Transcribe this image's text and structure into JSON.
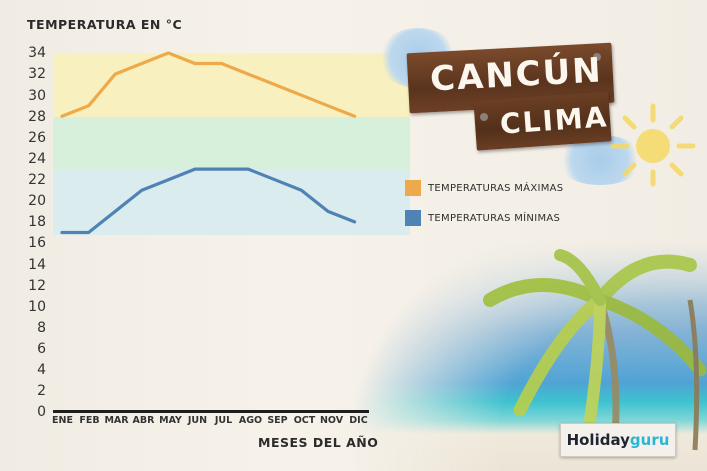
{
  "header": {
    "title_line1": "CANCÚN",
    "title_line2": "CLIMA"
  },
  "axes": {
    "y_title": "TEMPERATURA EN °C",
    "x_title": "MESES DEL AÑO",
    "y_ticks": [
      "34",
      "32",
      "30",
      "28",
      "26",
      "24",
      "22",
      "20",
      "18",
      "16",
      "14",
      "12",
      "10",
      "8",
      "6",
      "4",
      "2",
      "0"
    ],
    "x_ticks": [
      "ENE",
      "FEB",
      "MAR",
      "ABR",
      "MAY",
      "JUN",
      "JUL",
      "AGO",
      "SEP",
      "OCT",
      "NOV",
      "DIC"
    ]
  },
  "legend": {
    "max_label": "TEMPERATURAS MÁXIMAS",
    "min_label": "TEMPERATURAS MÍNIMAS",
    "max_color": "#eda94a",
    "min_color": "#4f82b5"
  },
  "brand": {
    "part1": "Holiday",
    "part2": "guru"
  },
  "chart_data": {
    "type": "line",
    "title": "Cancún Clima",
    "xlabel": "MESES DEL AÑO",
    "ylabel": "TEMPERATURA EN °C",
    "categories": [
      "ENE",
      "FEB",
      "MAR",
      "ABR",
      "MAY",
      "JUN",
      "JUL",
      "AGO",
      "SEP",
      "OCT",
      "NOV",
      "DIC"
    ],
    "series": [
      {
        "name": "TEMPERATURAS MÁXIMAS",
        "color": "#eda94a",
        "values": [
          28,
          29,
          32,
          33,
          34,
          33,
          33,
          32,
          31,
          30,
          29,
          28
        ]
      },
      {
        "name": "TEMPERATURAS MÍNIMAS",
        "color": "#4f82b5",
        "values": [
          17,
          17,
          19,
          21,
          22,
          23,
          23,
          23,
          22,
          21,
          19,
          18
        ]
      }
    ],
    "ylim": [
      0,
      34
    ],
    "y_tick_step": 2,
    "background_bands": [
      {
        "from": 28,
        "to": 34,
        "color": "#f8efb9"
      },
      {
        "from": 23,
        "to": 28,
        "color": "#d6f0dc"
      },
      {
        "from": 16.8,
        "to": 23,
        "color": "#d8ecf0"
      }
    ],
    "grid": false,
    "legend_position": "right"
  }
}
